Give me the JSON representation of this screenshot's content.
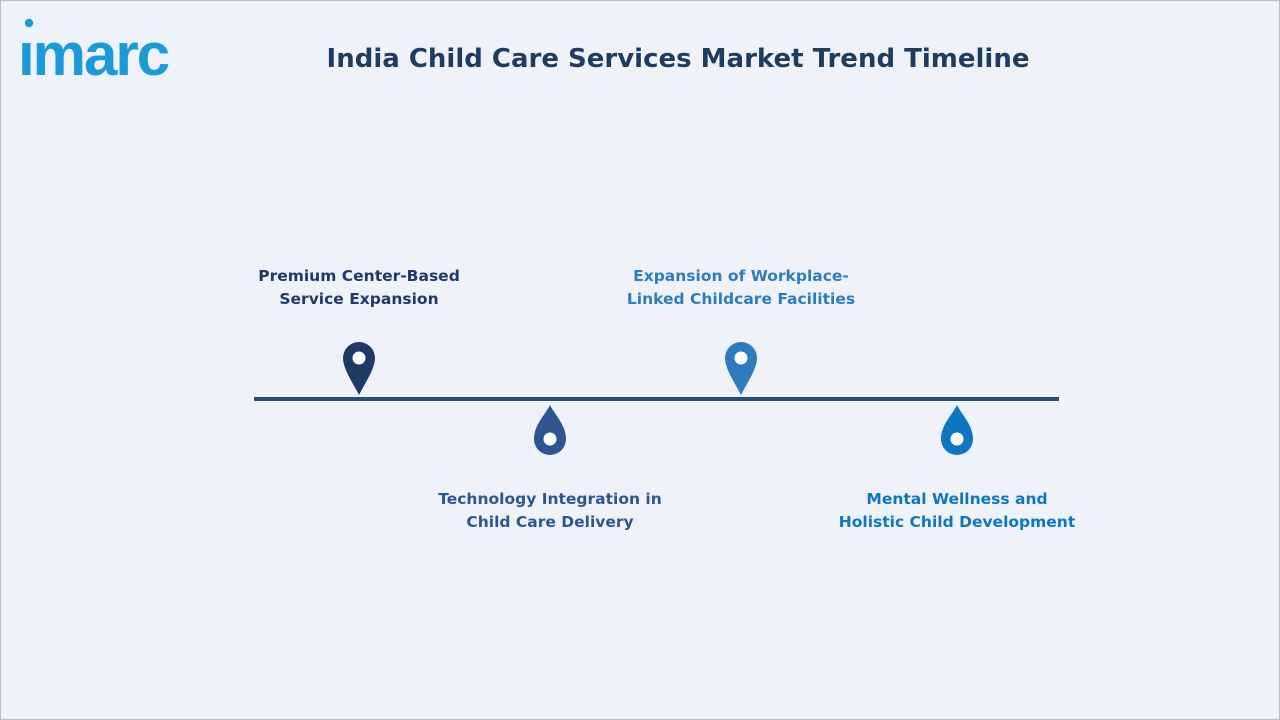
{
  "brand": {
    "logo_text": "imarc",
    "logo_color": "#1a9bd7"
  },
  "title": "India Child Care Services Market Trend Timeline",
  "colors": {
    "background": "#eff3f9",
    "timeline_line": "#264e77",
    "title": "#1f3b5d"
  },
  "timeline": {
    "items": [
      {
        "line1": "Premium Center-Based",
        "line2": "Service Expansion",
        "position": "above",
        "marker": "map-pin",
        "color": "#1f3a64"
      },
      {
        "line1": "Technology Integration in",
        "line2": "Child Care Delivery",
        "position": "below",
        "marker": "drop",
        "color": "#2e5592"
      },
      {
        "line1": "Expansion of Workplace-",
        "line2": "Linked Childcare Facilities",
        "position": "above",
        "marker": "map-pin",
        "color": "#2f7bbf"
      },
      {
        "line1": "Mental Wellness and",
        "line2": "Holistic Child Development",
        "position": "below",
        "marker": "drop",
        "color": "#0f76c0"
      }
    ]
  }
}
